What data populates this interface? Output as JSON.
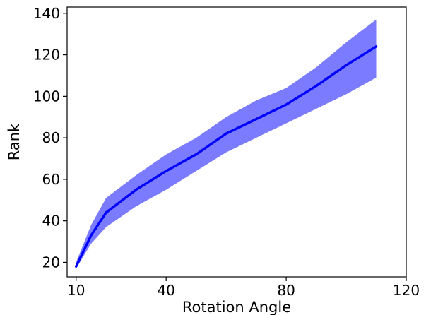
{
  "chart_data": {
    "type": "line",
    "title": "",
    "xlabel": "Rotation Angle",
    "ylabel": "Rank",
    "xlim": [
      7,
      120
    ],
    "ylim": [
      13,
      143
    ],
    "xticks": [
      10,
      40,
      80,
      120
    ],
    "yticks": [
      20,
      40,
      60,
      80,
      100,
      120,
      140
    ],
    "grid": false,
    "legend": "none",
    "series": [
      {
        "color": "#0000ff",
        "band_color": "#7b7bff",
        "x": [
          10,
          15,
          20,
          30,
          40,
          50,
          60,
          70,
          80,
          90,
          100,
          110
        ],
        "y": [
          18,
          33,
          44,
          55,
          64,
          72,
          82,
          89,
          96,
          105,
          115,
          124
        ],
        "lower": [
          17,
          29,
          37,
          47,
          55,
          64,
          73,
          80,
          87,
          94,
          101,
          109
        ],
        "upper": [
          20,
          38,
          51,
          62,
          72,
          80,
          90,
          98,
          104,
          114,
          126,
          137
        ]
      }
    ]
  }
}
